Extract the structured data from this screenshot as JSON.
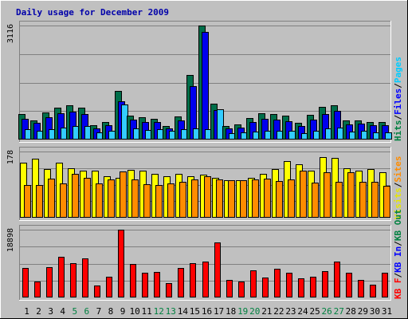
{
  "chart_data": {
    "type": "bar",
    "title": "Daily usage for December 2009",
    "categories": [
      "1",
      "2",
      "3",
      "4",
      "5",
      "6",
      "7",
      "8",
      "9",
      "10",
      "11",
      "12",
      "13",
      "14",
      "15",
      "16",
      "17",
      "18",
      "19",
      "20",
      "21",
      "22",
      "23",
      "24",
      "25",
      "26",
      "27",
      "28",
      "29",
      "30",
      "31"
    ],
    "weekend_days": [
      "5",
      "6",
      "12",
      "13",
      "19",
      "20",
      "26",
      "27"
    ],
    "panels": [
      {
        "name": "top",
        "ymax_label": "3116",
        "ymax": 3116,
        "right_labels": [
          {
            "text": "Hits",
            "color": "#008040"
          },
          {
            "text": "/",
            "color": "#000000"
          },
          {
            "text": "Files",
            "color": "#0000ff"
          },
          {
            "text": "/",
            "color": "#000000"
          },
          {
            "text": "Pages",
            "color": "#00ccff"
          }
        ],
        "series": [
          {
            "name": "Hits",
            "color": "#006e4a",
            "values": [
              700,
              530,
              730,
              870,
              930,
              870,
              390,
              490,
              1330,
              660,
              600,
              560,
              380,
              640,
              1760,
              3116,
              980,
              380,
              410,
              590,
              710,
              690,
              660,
              450,
              680,
              900,
              930,
              520,
              530,
              490,
              470
            ]
          },
          {
            "name": "Files",
            "color": "#0000ee",
            "values": [
              560,
              450,
              620,
              710,
              760,
              690,
              310,
              400,
              1050,
              540,
              490,
              490,
              300,
              520,
              1460,
              2950,
              800,
              310,
              330,
              470,
              560,
              540,
              500,
              360,
              550,
              700,
              780,
              420,
              430,
              400,
              390
            ]
          },
          {
            "name": "Pages",
            "color": "#33ccff",
            "values": [
              280,
              230,
              280,
              330,
              380,
              360,
              200,
              250,
              950,
              300,
              270,
              280,
              240,
              280,
              310,
              280,
              820,
              170,
              200,
              220,
              250,
              240,
              240,
              180,
              250,
              300,
              330,
              210,
              230,
              200,
              190
            ]
          }
        ]
      },
      {
        "name": "middle",
        "ymax_label": "178",
        "ymax": 178,
        "right_labels": [
          {
            "text": "Visits",
            "color": "#e6e600"
          },
          {
            "text": "/",
            "color": "#000000"
          },
          {
            "text": "Sites",
            "color": "#ff8c00"
          }
        ],
        "series": [
          {
            "name": "Visits",
            "color": "#ffff00",
            "values": [
              148,
              158,
              130,
              148,
              132,
              126,
              126,
              112,
              108,
              128,
              126,
              118,
              112,
              118,
              112,
              116,
              108,
              100,
              100,
              108,
              118,
              130,
              152,
              144,
              126,
              162,
              160,
              132,
              126,
              130,
              122
            ]
          },
          {
            "name": "Sites",
            "color": "#ff8c00",
            "values": [
              88,
              88,
              106,
              92,
              118,
              108,
              92,
              104,
              124,
              102,
              90,
              88,
              92,
              96,
              104,
              112,
              102,
              100,
              100,
              104,
              106,
              98,
              102,
              126,
              94,
              122,
              96,
              122,
              96,
              96,
              86
            ]
          }
        ]
      },
      {
        "name": "bottom",
        "ymax_label": "18898",
        "ymax": 18898,
        "right_labels": [
          {
            "text": "KB F",
            "color": "#ff0000"
          },
          {
            "text": "/",
            "color": "#000000"
          },
          {
            "text": "KB In",
            "color": "#0000ff"
          },
          {
            "text": "/",
            "color": "#000000"
          },
          {
            "text": "KB Out",
            "color": "#008040"
          }
        ],
        "series": [
          {
            "name": "KB F",
            "color": "#ff0000",
            "values": [
              8200,
              4500,
              8500,
              11400,
              9600,
              11000,
              3300,
              5700,
              18898,
              9300,
              6800,
              7200,
              3900,
              8300,
              9500,
              9900,
              15300,
              4900,
              4500,
              7500,
              5600,
              8100,
              6900,
              5400,
              5800,
              7300,
              10000,
              7000,
              5000,
              3600,
              6800
            ]
          }
        ]
      }
    ]
  }
}
